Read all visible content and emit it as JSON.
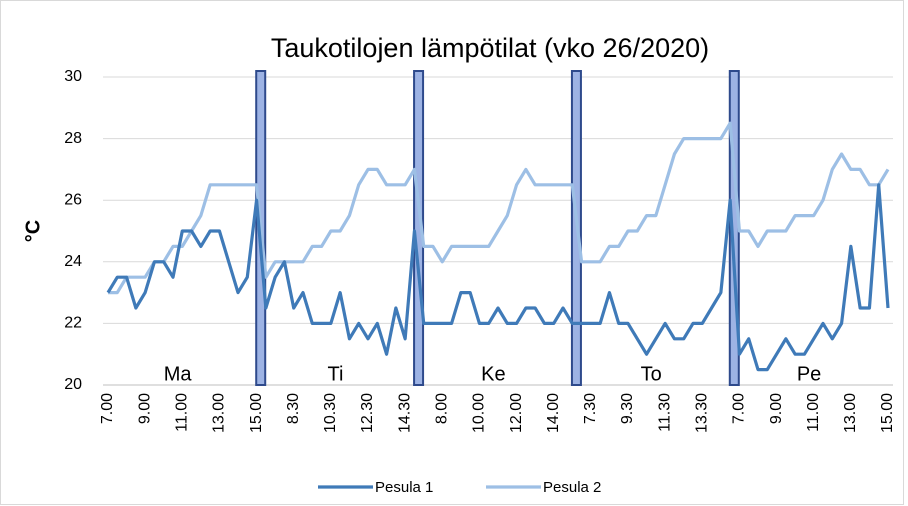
{
  "chart_data": {
    "type": "line",
    "title": "Taukotilojen lämpötilat (vko 26/2020)",
    "y_label": "°C",
    "categories": [
      "7.00",
      null,
      null,
      null,
      "9.00",
      null,
      null,
      null,
      "11.00",
      null,
      null,
      null,
      "13.00",
      null,
      null,
      null,
      "15.00",
      null,
      null,
      null,
      "8.30",
      null,
      null,
      null,
      "10.30",
      null,
      null,
      null,
      "12.30",
      null,
      null,
      null,
      "14.30",
      null,
      null,
      null,
      "8.00",
      null,
      null,
      null,
      "10.00",
      null,
      null,
      null,
      "12.00",
      null,
      null,
      null,
      "14.00",
      null,
      null,
      null,
      "7.30",
      null,
      null,
      null,
      "9.30",
      null,
      null,
      null,
      "11.30",
      null,
      null,
      null,
      "13.30",
      null,
      null,
      null,
      "7.00",
      null,
      null,
      null,
      "9.00",
      null,
      null,
      null,
      "11.00",
      null,
      null,
      null,
      "13.00",
      null,
      null,
      null,
      "15.00"
    ],
    "day_labels": [
      "Ma",
      "Ti",
      "Ke",
      "To",
      "Pe"
    ],
    "series": [
      {
        "name": "Pesula 1",
        "color": "#3f7ab8",
        "values": [
          23,
          23.5,
          23.5,
          22.5,
          23,
          24,
          24,
          23.5,
          25,
          25,
          24.5,
          25,
          25,
          24,
          23,
          23.5,
          26,
          22.5,
          23.5,
          24,
          22.5,
          23,
          22,
          22,
          22,
          23,
          21.5,
          22,
          21.5,
          22,
          21,
          22.5,
          21.5,
          25,
          22,
          22,
          22,
          22,
          23,
          23,
          22,
          22,
          22.5,
          22,
          22,
          22.5,
          22.5,
          22,
          22,
          22.5,
          22,
          22,
          22,
          22,
          23,
          22,
          22,
          21.5,
          21,
          21.5,
          22,
          21.5,
          21.5,
          22,
          22,
          22.5,
          23,
          26,
          21,
          21.5,
          20.5,
          20.5,
          21,
          21.5,
          21,
          21,
          21.5,
          22,
          21.5,
          22,
          24.5,
          22.5,
          22.5,
          26.5,
          22.5
        ]
      },
      {
        "name": "Pesula 2",
        "color": "#9dbfe5",
        "values": [
          23,
          23,
          23.5,
          23.5,
          23.5,
          24,
          24,
          24.5,
          24.5,
          25,
          25.5,
          26.5,
          26.5,
          26.5,
          26.5,
          26.5,
          26.5,
          23.5,
          24,
          24,
          24,
          24,
          24.5,
          24.5,
          25,
          25,
          25.5,
          26.5,
          27,
          27,
          26.5,
          26.5,
          26.5,
          27,
          24.5,
          24.5,
          24,
          24.5,
          24.5,
          24.5,
          24.5,
          24.5,
          25,
          25.5,
          26.5,
          27,
          26.5,
          26.5,
          26.5,
          26.5,
          26.5,
          24,
          24,
          24,
          24.5,
          24.5,
          25,
          25,
          25.5,
          25.5,
          26.5,
          27.5,
          28,
          28,
          28,
          28,
          28,
          28.5,
          25,
          25,
          24.5,
          25,
          25,
          25,
          25.5,
          25.5,
          25.5,
          26,
          27,
          27.5,
          27,
          27,
          26.5,
          26.5,
          27
        ]
      }
    ],
    "ylim": [
      20,
      30
    ],
    "yticks": [
      20,
      22,
      24,
      26,
      28,
      30
    ],
    "grid": true
  }
}
